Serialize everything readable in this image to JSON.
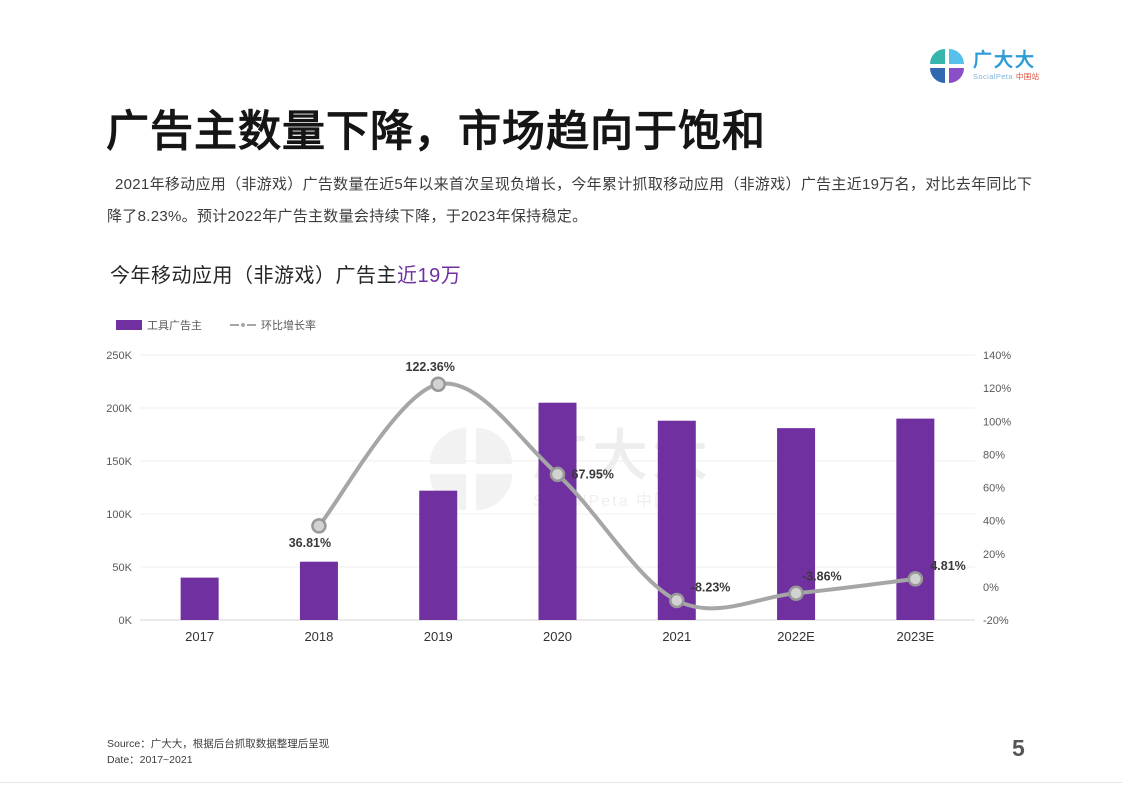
{
  "logo": {
    "name": "广大大",
    "subtitle_en": "SocialPeta",
    "subtitle_cn": "中国站"
  },
  "page": {
    "title": "广告主数量下降，市场趋向于饱和",
    "paragraph": "2021年移动应用（非游戏）广告数量在近5年以来首次呈现负增长，今年累计抓取移动应用（非游戏）广告主近19万名，对比去年同比下降了8.23%。预计2022年广告主数量会持续下降，于2023年保持稳定。",
    "page_number": "5"
  },
  "chart_section": {
    "subtitle_main": "今年移动应用（非游戏）广告主",
    "subtitle_highlight": "近19万"
  },
  "watermark": {
    "text": "广大大",
    "subtext": "SocialPeta 中国站"
  },
  "footer": {
    "source": "Source：广大大，根据后台抓取数据整理后呈现",
    "date": "Date：2017~2021"
  },
  "colors": {
    "bar": "#7030A0",
    "line": "#a6a6a6",
    "highlight": "#7030A0"
  },
  "chart_data": {
    "type": "bar",
    "categories": [
      "2017",
      "2018",
      "2019",
      "2020",
      "2021",
      "2022E",
      "2023E"
    ],
    "series": [
      {
        "name": "工具广告主",
        "type": "bar",
        "color": "#7030A0",
        "axis": "left",
        "values": [
          40000,
          55000,
          122000,
          205000,
          188000,
          181000,
          190000
        ]
      },
      {
        "name": "环比增长率",
        "type": "line",
        "color": "#a6a6a6",
        "axis": "right",
        "values": [
          null,
          36.81,
          122.36,
          67.95,
          -8.23,
          -3.86,
          4.81
        ],
        "labels": [
          "",
          "36.81%",
          "122.36%",
          "67.95%",
          "-8.23%",
          "-3.86%",
          "4.81%"
        ]
      }
    ],
    "left_axis": {
      "min": 0,
      "max": 250000,
      "ticks": [
        "0K",
        "50K",
        "100K",
        "150K",
        "200K",
        "250K"
      ]
    },
    "right_axis": {
      "min": -20,
      "max": 140,
      "ticks": [
        "-20%",
        "0%",
        "20%",
        "40%",
        "60%",
        "80%",
        "100%",
        "120%",
        "140%"
      ]
    },
    "title": "今年移动应用（非游戏）广告主近19万",
    "xlabel": "",
    "ylabel": "",
    "legend_position": "top-left",
    "grid": true
  }
}
